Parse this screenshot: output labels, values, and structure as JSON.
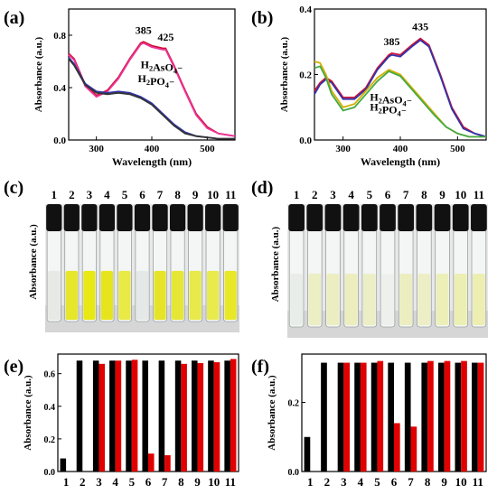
{
  "panels": [
    {
      "id": "a",
      "label": "(a)"
    },
    {
      "id": "b",
      "label": "(b)"
    },
    {
      "id": "c",
      "label": "(c)"
    },
    {
      "id": "d",
      "label": "(d)"
    },
    {
      "id": "e",
      "label": "(e)"
    },
    {
      "id": "f",
      "label": "(f)"
    }
  ],
  "photo_c": {
    "tube_numbers": [
      "1",
      "2",
      "3",
      "4",
      "5",
      "6",
      "7",
      "8",
      "9",
      "10",
      "11"
    ],
    "cap_color": "#111111",
    "liquid_colors": [
      "#e6e9e4",
      "#e6e62a",
      "#e8e815",
      "#e6e51d",
      "#e9ea46",
      "#e4e8e6",
      "#e5e42a",
      "#e6e637",
      "#e8e94a",
      "#e9ea4d",
      "#e8e827"
    ],
    "ylabel": "Absorbance (a.u.)"
  },
  "photo_d": {
    "tube_numbers": [
      "1",
      "2",
      "3",
      "4",
      "5",
      "6",
      "7",
      "8",
      "9",
      "10",
      "11"
    ],
    "cap_color": "#111111",
    "liquid_colors": [
      "#e9ede9",
      "#eceec4",
      "#eceec2",
      "#eceebd",
      "#ecefc5",
      "#eef0ed",
      "#eceec0",
      "#edeec6",
      "#ecefb8",
      "#ecefb2",
      "#eceeb2"
    ],
    "ylabel": "Absorbance (a.u.)"
  },
  "chart_data": [
    {
      "panel": "a",
      "type": "line",
      "xlabel": "Wavelength (nm)",
      "ylabel": "Absorbance (a.u.)",
      "xlim": [
        250,
        550
      ],
      "ylim": [
        0,
        1.0
      ],
      "xticks": [
        300,
        400,
        500
      ],
      "yticks": [
        0.0,
        0.4,
        0.8
      ],
      "peak_labels": [
        {
          "text": "385",
          "x": 385,
          "y": 0.81
        },
        {
          "text": "425",
          "x": 425,
          "y": 0.76
        }
      ],
      "annotations": [
        {
          "text": "H2AsO4⁻",
          "x": 445,
          "y": 0.55
        },
        {
          "text": "H2PO4⁻",
          "x": 440,
          "y": 0.44
        }
      ],
      "series": [
        {
          "color": "#cc1133",
          "x": [
            250,
            260,
            280,
            300,
            320,
            340,
            360,
            380,
            385,
            400,
            420,
            425,
            440,
            460,
            480,
            500,
            520,
            550
          ],
          "y": [
            0.66,
            0.62,
            0.42,
            0.34,
            0.38,
            0.48,
            0.62,
            0.74,
            0.75,
            0.72,
            0.7,
            0.7,
            0.57,
            0.38,
            0.2,
            0.1,
            0.05,
            0.03
          ]
        },
        {
          "color": "#ee3399",
          "x": [
            250,
            260,
            280,
            300,
            320,
            340,
            360,
            380,
            385,
            400,
            420,
            425,
            440,
            460,
            480,
            500,
            520,
            550
          ],
          "y": [
            0.65,
            0.61,
            0.41,
            0.33,
            0.37,
            0.47,
            0.61,
            0.73,
            0.74,
            0.71,
            0.69,
            0.69,
            0.56,
            0.37,
            0.19,
            0.09,
            0.05,
            0.03
          ]
        },
        {
          "color": "#3333aa",
          "x": [
            250,
            260,
            280,
            300,
            320,
            340,
            360,
            380,
            400,
            420,
            440,
            460,
            480,
            500,
            520,
            550
          ],
          "y": [
            0.63,
            0.58,
            0.43,
            0.37,
            0.36,
            0.37,
            0.36,
            0.33,
            0.28,
            0.2,
            0.12,
            0.06,
            0.03,
            0.02,
            0.01,
            0.01
          ]
        },
        {
          "color": "#333333",
          "x": [
            250,
            260,
            280,
            300,
            320,
            340,
            360,
            380,
            400,
            420,
            440,
            460,
            480,
            500,
            520,
            550
          ],
          "y": [
            0.62,
            0.57,
            0.42,
            0.36,
            0.35,
            0.36,
            0.35,
            0.32,
            0.27,
            0.19,
            0.11,
            0.05,
            0.03,
            0.02,
            0.01,
            0.01
          ]
        }
      ]
    },
    {
      "panel": "b",
      "type": "line",
      "xlabel": "Wavelength (nm)",
      "ylabel": "Absorbance (a.u.)",
      "xlim": [
        250,
        550
      ],
      "ylim": [
        0,
        0.4
      ],
      "xticks": [
        300,
        400,
        500
      ],
      "yticks": [
        0.0,
        0.2,
        0.4
      ],
      "peak_labels": [
        {
          "text": "385",
          "x": 385,
          "y": 0.29
        },
        {
          "text": "435",
          "x": 435,
          "y": 0.335
        }
      ],
      "annotations": [
        {
          "text": "H2AsO4⁻",
          "x": 410,
          "y": 0.12
        },
        {
          "text": "H2PO4⁻",
          "x": 410,
          "y": 0.09
        }
      ],
      "series": [
        {
          "color": "#cc1133",
          "x": [
            250,
            260,
            270,
            280,
            300,
            320,
            340,
            360,
            380,
            385,
            400,
            420,
            435,
            450,
            470,
            490,
            510,
            530,
            550
          ],
          "y": [
            0.15,
            0.175,
            0.19,
            0.18,
            0.13,
            0.13,
            0.16,
            0.22,
            0.26,
            0.265,
            0.26,
            0.29,
            0.31,
            0.29,
            0.2,
            0.1,
            0.04,
            0.02,
            0.01
          ]
        },
        {
          "color": "#3333aa",
          "x": [
            250,
            260,
            270,
            280,
            300,
            320,
            340,
            360,
            380,
            385,
            400,
            420,
            435,
            450,
            470,
            490,
            510,
            530,
            550
          ],
          "y": [
            0.14,
            0.17,
            0.185,
            0.175,
            0.125,
            0.125,
            0.155,
            0.215,
            0.255,
            0.26,
            0.255,
            0.285,
            0.305,
            0.285,
            0.195,
            0.095,
            0.035,
            0.02,
            0.01
          ]
        },
        {
          "color": "#d4b000",
          "x": [
            250,
            260,
            270,
            280,
            300,
            320,
            340,
            360,
            380,
            400,
            420,
            440,
            460,
            480,
            500,
            520,
            550
          ],
          "y": [
            0.24,
            0.235,
            0.2,
            0.15,
            0.1,
            0.11,
            0.15,
            0.19,
            0.215,
            0.2,
            0.16,
            0.12,
            0.08,
            0.04,
            0.02,
            0.01,
            0.01
          ]
        },
        {
          "color": "#44aa44",
          "x": [
            250,
            260,
            270,
            280,
            300,
            320,
            340,
            360,
            380,
            400,
            420,
            440,
            460,
            480,
            500,
            520,
            550
          ],
          "y": [
            0.22,
            0.225,
            0.19,
            0.14,
            0.09,
            0.1,
            0.14,
            0.18,
            0.21,
            0.195,
            0.155,
            0.115,
            0.075,
            0.04,
            0.02,
            0.01,
            0.01
          ]
        }
      ]
    },
    {
      "panel": "e",
      "type": "bar",
      "ylabel": "Absorbance (a.u.)",
      "categories": [
        "1",
        "2",
        "3",
        "4",
        "5",
        "6",
        "7",
        "8",
        "9",
        "10",
        "11"
      ],
      "ylim": [
        0,
        0.72
      ],
      "yticks": [
        0.0,
        0.2,
        0.4,
        0.6
      ],
      "series": [
        {
          "color": "#000000",
          "values": [
            0.08,
            0.68,
            0.68,
            0.68,
            0.68,
            0.68,
            0.68,
            0.68,
            0.68,
            0.68,
            0.68
          ]
        },
        {
          "color": "#e00000",
          "values": [
            null,
            null,
            0.66,
            0.68,
            0.685,
            0.11,
            0.1,
            0.66,
            0.665,
            0.67,
            0.69
          ]
        }
      ]
    },
    {
      "panel": "f",
      "type": "bar",
      "ylabel": "Absorbance (a.u.)",
      "categories": [
        "1",
        "2",
        "3",
        "4",
        "5",
        "6",
        "7",
        "8",
        "9",
        "10",
        "11"
      ],
      "ylim": [
        0,
        0.34
      ],
      "yticks": [
        0.0,
        0.2
      ],
      "series": [
        {
          "color": "#000000",
          "values": [
            0.1,
            0.315,
            0.315,
            0.315,
            0.315,
            0.315,
            0.315,
            0.315,
            0.315,
            0.315,
            0.315
          ]
        },
        {
          "color": "#e00000",
          "values": [
            null,
            null,
            0.315,
            0.315,
            0.32,
            0.14,
            0.13,
            0.32,
            0.32,
            0.32,
            0.315
          ]
        }
      ]
    }
  ]
}
